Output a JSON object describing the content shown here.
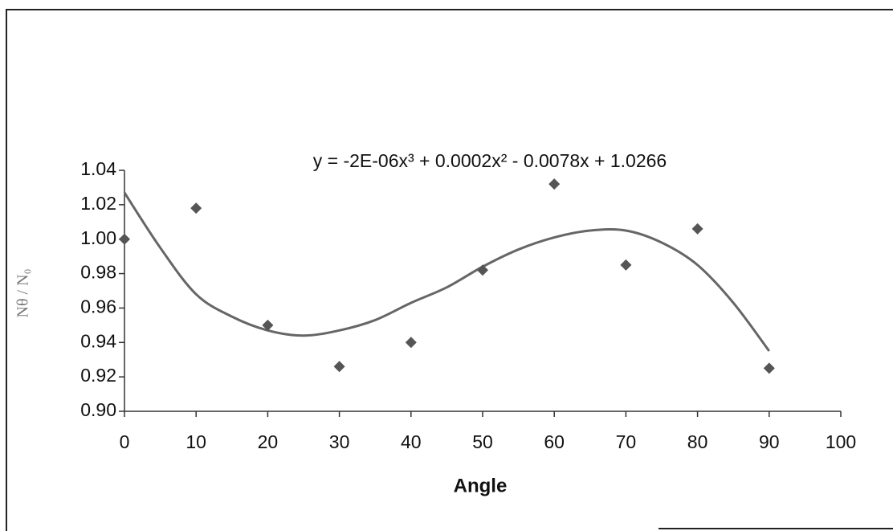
{
  "chart_data": {
    "type": "scatter",
    "equation": "y = -2E-06x³ + 0.0002x² - 0.0078x + 1.0266",
    "xlabel": "Angle",
    "ylabel": "Nθ / N₀",
    "x": [
      0,
      10,
      20,
      30,
      40,
      50,
      60,
      70,
      80,
      90
    ],
    "series": [
      {
        "color": "#555555",
        "values": [
          1.0,
          1.018,
          0.95,
          0.926,
          0.94,
          0.982,
          1.032,
          0.985,
          1.006,
          0.925
        ]
      }
    ],
    "trendline": {
      "color": "#666666",
      "x": [
        0,
        5,
        10,
        15,
        20,
        25,
        30,
        35,
        40,
        45,
        50,
        55,
        60,
        65,
        70,
        75,
        80,
        85,
        90
      ],
      "values": [
        1.027,
        0.995,
        0.968,
        0.955,
        0.947,
        0.944,
        0.947,
        0.953,
        0.963,
        0.972,
        0.984,
        0.994,
        1.001,
        1.005,
        1.005,
        0.998,
        0.985,
        0.963,
        0.935
      ]
    },
    "xlim": [
      0,
      100
    ],
    "xticks": [
      0,
      10,
      20,
      30,
      40,
      50,
      60,
      70,
      80,
      90,
      100
    ],
    "ylim": [
      0.9,
      1.04
    ],
    "yticks": [
      {
        "value": 0.9,
        "label": "0.90"
      },
      0.92,
      0.94,
      0.96,
      0.98,
      {
        "value": 1.0,
        "label": "1.00"
      },
      1.02,
      1.04
    ]
  }
}
